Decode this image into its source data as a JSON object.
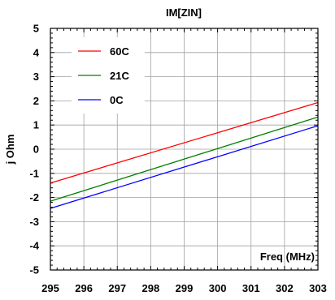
{
  "chart_data": {
    "type": "line",
    "title": "IM[ZIN]",
    "xlabel": "Freq (MHz)",
    "ylabel": "j Ohm",
    "xlim": [
      295,
      303
    ],
    "ylim": [
      -5,
      5
    ],
    "x_ticks": [
      295,
      296,
      297,
      298,
      299,
      300,
      301,
      302,
      303
    ],
    "y_ticks": [
      5,
      4,
      3,
      2,
      1,
      0,
      -1,
      -2,
      -3,
      -4,
      -5
    ],
    "grid": true,
    "legend_position": "top-left",
    "series": [
      {
        "name": "60C",
        "color": "#ff0000",
        "x": [
          295,
          303
        ],
        "y": [
          -1.4,
          1.93
        ]
      },
      {
        "name": "21C",
        "color": "#008000",
        "x": [
          295,
          303
        ],
        "y": [
          -2.15,
          1.33
        ]
      },
      {
        "name": "0C",
        "color": "#0000ff",
        "x": [
          295,
          303
        ],
        "y": [
          -2.45,
          0.97
        ]
      }
    ]
  }
}
